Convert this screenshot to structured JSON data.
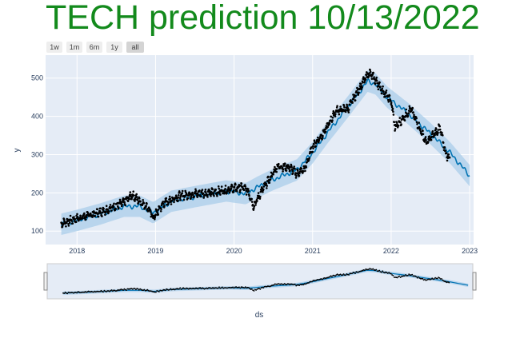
{
  "header": {
    "title": "TECH prediction 10/13/2022",
    "title_color": "#138a1c"
  },
  "range_selector": [
    {
      "label": "1w",
      "active": false
    },
    {
      "label": "1m",
      "active": false
    },
    {
      "label": "6m",
      "active": false
    },
    {
      "label": "1y",
      "active": false
    },
    {
      "label": "all",
      "active": true
    }
  ],
  "colors": {
    "plot_bg": "#e5ecf6",
    "band": "#a9cdea",
    "forecast": "#0072b2",
    "points": "#000000",
    "grid": "#ffffff"
  },
  "chart_data": {
    "type": "scatter",
    "xlabel": "ds",
    "ylabel": "y",
    "xlim": [
      2017.6,
      2023.05
    ],
    "ylim": [
      65,
      560
    ],
    "x_ticks": [
      "2018",
      "2019",
      "2020",
      "2021",
      "2022",
      "2023"
    ],
    "y_ticks": [
      100,
      200,
      300,
      400,
      500
    ],
    "grid": true,
    "rangeslider": true,
    "actual_series_anchors": [
      [
        2017.8,
        120
      ],
      [
        2018.0,
        133
      ],
      [
        2018.3,
        150
      ],
      [
        2018.6,
        175
      ],
      [
        2018.7,
        195
      ],
      [
        2018.9,
        162
      ],
      [
        2018.97,
        135
      ],
      [
        2019.1,
        172
      ],
      [
        2019.3,
        192
      ],
      [
        2019.5,
        198
      ],
      [
        2019.7,
        200
      ],
      [
        2019.9,
        208
      ],
      [
        2020.1,
        215
      ],
      [
        2020.18,
        205
      ],
      [
        2020.25,
        165
      ],
      [
        2020.35,
        205
      ],
      [
        2020.45,
        235
      ],
      [
        2020.55,
        270
      ],
      [
        2020.7,
        268
      ],
      [
        2020.8,
        250
      ],
      [
        2020.9,
        262
      ],
      [
        2021.0,
        320
      ],
      [
        2021.15,
        360
      ],
      [
        2021.3,
        415
      ],
      [
        2021.45,
        420
      ],
      [
        2021.6,
        475
      ],
      [
        2021.72,
        515
      ],
      [
        2021.78,
        500
      ],
      [
        2021.9,
        465
      ],
      [
        2022.0,
        440
      ],
      [
        2022.05,
        370
      ],
      [
        2022.15,
        395
      ],
      [
        2022.25,
        420
      ],
      [
        2022.35,
        375
      ],
      [
        2022.45,
        330
      ],
      [
        2022.55,
        355
      ],
      [
        2022.62,
        370
      ],
      [
        2022.7,
        300
      ],
      [
        2022.75,
        290
      ]
    ],
    "forecast_anchors": [
      [
        2017.8,
        118
      ],
      [
        2018.0,
        128
      ],
      [
        2018.3,
        145
      ],
      [
        2018.6,
        165
      ],
      [
        2018.8,
        165
      ],
      [
        2018.97,
        148
      ],
      [
        2019.2,
        178
      ],
      [
        2019.5,
        190
      ],
      [
        2019.9,
        205
      ],
      [
        2020.15,
        198
      ],
      [
        2020.3,
        215
      ],
      [
        2020.5,
        235
      ],
      [
        2020.8,
        260
      ],
      [
        2021.0,
        305
      ],
      [
        2021.2,
        360
      ],
      [
        2021.45,
        425
      ],
      [
        2021.7,
        492
      ],
      [
        2021.8,
        485
      ],
      [
        2021.95,
        450
      ],
      [
        2022.2,
        410
      ],
      [
        2022.5,
        355
      ],
      [
        2022.75,
        305
      ],
      [
        2023.0,
        245
      ]
    ],
    "band_halfwidth": 28
  }
}
